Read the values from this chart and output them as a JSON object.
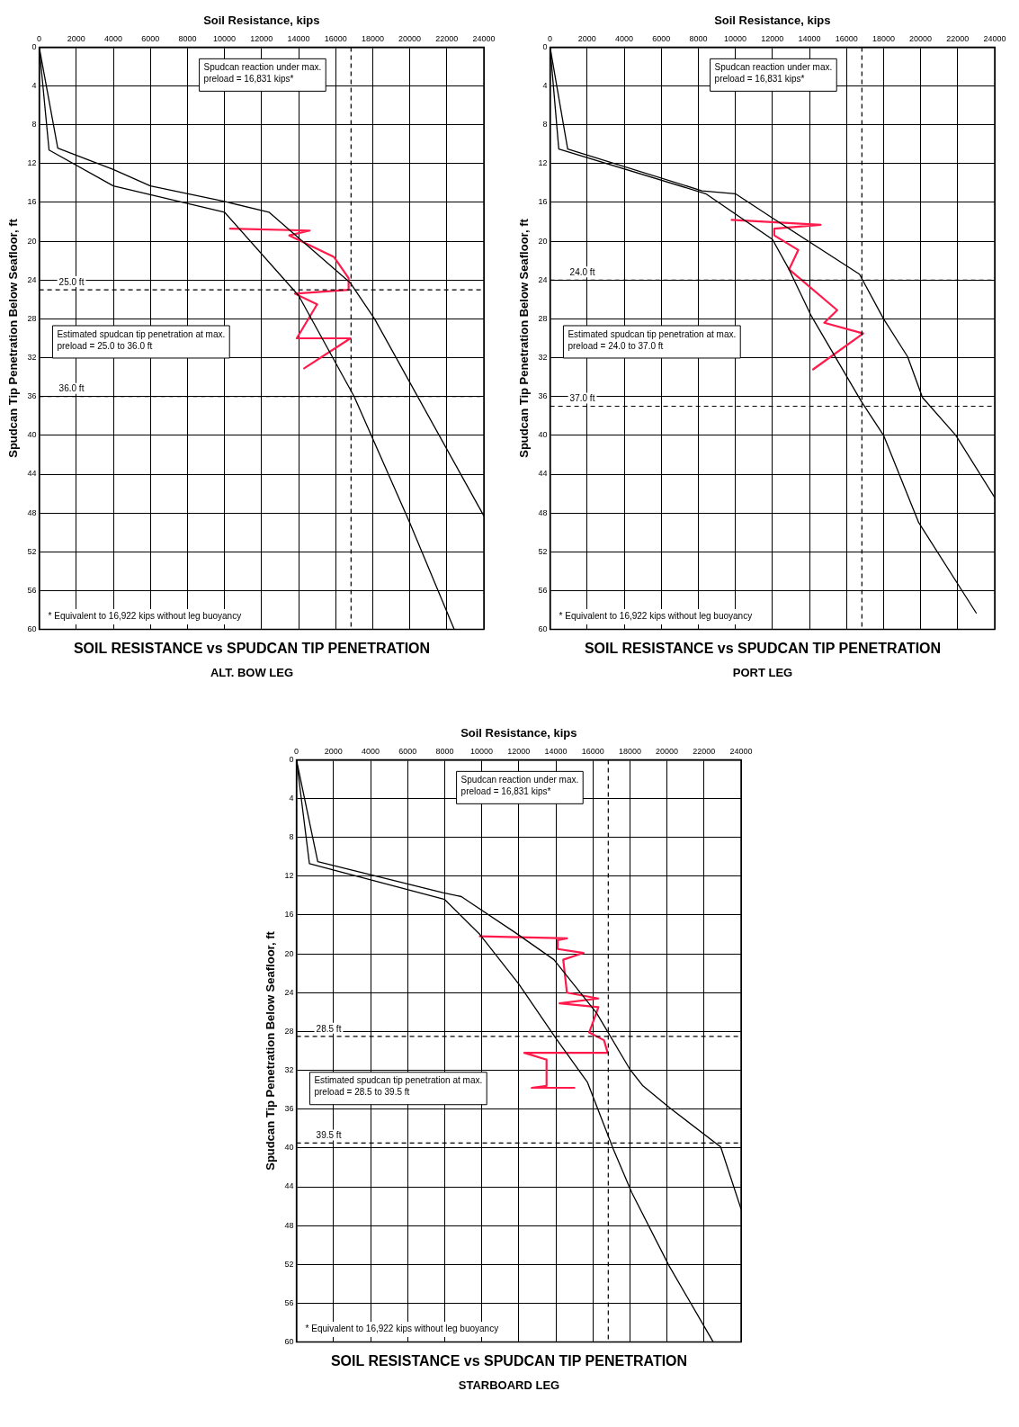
{
  "chart_data": [
    {
      "type": "line",
      "title": "SOIL RESISTANCE vs SPUDCAN TIP PENETRATION",
      "subtitle": "ALT. BOW LEG",
      "xlabel": "Soil Resistance, kips",
      "ylabel": "Spudcan Tip Penetration Below Seafloor, ft",
      "xlim": [
        0,
        24000
      ],
      "xticks": [
        0,
        2000,
        4000,
        6000,
        8000,
        10000,
        12000,
        14000,
        16000,
        18000,
        20000,
        22000,
        24000
      ],
      "ylim": [
        60,
        0
      ],
      "yticks": [
        0,
        4,
        8,
        12,
        16,
        20,
        24,
        28,
        32,
        36,
        40,
        44,
        48,
        52,
        56,
        60
      ],
      "grid": true,
      "series": [
        {
          "color": "#000000",
          "x": [
            0,
            1000,
            4000,
            6000,
            10000,
            12400,
            16800,
            18100,
            24000
          ],
          "values": [
            0,
            10.4,
            12.6,
            14.3,
            15.9,
            17.0,
            24.3,
            28,
            48.3
          ]
        },
        {
          "color": "#000000",
          "x": [
            0,
            530,
            4000,
            10000,
            14000,
            17000,
            20000,
            22400
          ],
          "values": [
            0,
            10.6,
            14.3,
            17.0,
            25.6,
            36,
            49,
            60
          ]
        },
        {
          "color": "#ff1a4b",
          "x": [
            10300,
            14600,
            13500,
            15900,
            16700,
            16700,
            13800,
            15000,
            13900,
            16800,
            14300
          ],
          "values": [
            18.7,
            18.9,
            19.4,
            21.6,
            23.8,
            25,
            25.4,
            26.5,
            30,
            30,
            33.1
          ]
        }
      ],
      "ref_lines": [
        {
          "axis": "x",
          "value": 16831,
          "line_style": "dashed"
        },
        {
          "axis": "y",
          "value": 25,
          "label": "25.0 ft",
          "line_style": "dashed"
        },
        {
          "axis": "y",
          "value": 36,
          "label": "36.0 ft",
          "line_style": "dashed"
        }
      ],
      "annotations": [
        "Spudcan reaction under max. preload = 16,831 kips*",
        "Estimated spudcan tip penetration at max. preload = 25.0 to 36.0 ft",
        "* Equivalent to 16,922 kips without leg buoyancy"
      ]
    },
    {
      "type": "line",
      "title": "SOIL RESISTANCE vs SPUDCAN TIP PENETRATION",
      "subtitle": "PORT LEG",
      "xlabel": "Soil Resistance, kips",
      "ylabel": "Spudcan Tip Penetration Below Seafloor, ft",
      "xlim": [
        0,
        24000
      ],
      "xticks": [
        0,
        2000,
        4000,
        6000,
        8000,
        10000,
        12000,
        14000,
        16000,
        18000,
        20000,
        22000,
        24000
      ],
      "ylim": [
        60,
        0
      ],
      "yticks": [
        0,
        4,
        8,
        12,
        16,
        20,
        24,
        28,
        32,
        36,
        40,
        44,
        48,
        52,
        56,
        60
      ],
      "grid": true,
      "series": [
        {
          "color": "#000000",
          "x": [
            0,
            950,
            8200,
            10000,
            12000,
            16700,
            18000,
            19300,
            20100,
            21900,
            24000
          ],
          "values": [
            0,
            10.5,
            14.8,
            15.1,
            17.6,
            23.4,
            28,
            31.9,
            36.1,
            40,
            46.4
          ]
        },
        {
          "color": "#000000",
          "x": [
            0,
            470,
            8400,
            12000,
            12900,
            14100,
            16800,
            18000,
            19900,
            23000
          ],
          "values": [
            0,
            10.5,
            15.1,
            19.8,
            22.9,
            27.7,
            36.5,
            40,
            49,
            58.3
          ]
        },
        {
          "color": "#ff1a4b",
          "x": [
            9800,
            14600,
            12100,
            12100,
            13400,
            12900,
            15500,
            14800,
            16900,
            14200
          ],
          "values": [
            17.8,
            18.3,
            18.7,
            19.4,
            20.9,
            22.9,
            27.1,
            28.4,
            29.5,
            33.2
          ]
        }
      ],
      "ref_lines": [
        {
          "axis": "x",
          "value": 16831,
          "line_style": "dashed"
        },
        {
          "axis": "y",
          "value": 24,
          "label": "24.0 ft",
          "line_style": "dashed"
        },
        {
          "axis": "y",
          "value": 37,
          "label": "37.0 ft",
          "line_style": "dashed"
        }
      ],
      "annotations": [
        "Spudcan reaction under max. preload = 16,831 kips*",
        "Estimated spudcan tip penetration at max. preload = 24.0 to 37.0 ft",
        "* Equivalent to 16,922 kips without leg buoyancy"
      ]
    },
    {
      "type": "line",
      "title": "SOIL RESISTANCE vs SPUDCAN TIP PENETRATION",
      "subtitle": "STARBOARD LEG",
      "xlabel": "Soil Resistance, kips",
      "ylabel": "Spudcan Tip Penetration Below Seafloor, ft",
      "xlim": [
        0,
        24000
      ],
      "xticks": [
        0,
        2000,
        4000,
        6000,
        8000,
        10000,
        12000,
        14000,
        16000,
        18000,
        20000,
        22000,
        24000
      ],
      "ylim": [
        60,
        0
      ],
      "yticks": [
        0,
        4,
        8,
        12,
        16,
        20,
        24,
        28,
        32,
        36,
        40,
        44,
        48,
        52,
        56,
        60
      ],
      "grid": true,
      "series": [
        {
          "color": "#000000",
          "x": [
            0,
            1150,
            7900,
            8900,
            11800,
            13900,
            16200,
            18000,
            18700,
            20100,
            22900,
            24000
          ],
          "values": [
            0,
            10.5,
            13.7,
            14.1,
            17.8,
            20.6,
            26.1,
            31.9,
            33.6,
            35.8,
            39.9,
            46.3
          ]
        },
        {
          "color": "#000000",
          "x": [
            0,
            700,
            8000,
            9900,
            12000,
            14000,
            15700,
            17100,
            18100,
            20100,
            22500
          ],
          "values": [
            0,
            10.7,
            14.4,
            18,
            23.1,
            28.7,
            33.2,
            40.1,
            44.6,
            52.1,
            60
          ]
        },
        {
          "color": "#ff1a4b",
          "x": [
            9900,
            14600,
            14100,
            14100,
            15500,
            14400,
            14600,
            16300,
            14200,
            16300,
            15800,
            16600,
            16800,
            12300,
            13500,
            13500,
            12700,
            15000
          ],
          "values": [
            18.2,
            18.4,
            18.6,
            19.5,
            19.9,
            20.6,
            24,
            24.6,
            25.1,
            25.5,
            28.1,
            28.9,
            30.2,
            30.2,
            30.9,
            33.6,
            33.8,
            33.8
          ]
        }
      ],
      "ref_lines": [
        {
          "axis": "x",
          "value": 16831,
          "line_style": "dashed"
        },
        {
          "axis": "y",
          "value": 28.5,
          "label": "28.5 ft",
          "line_style": "dashed"
        },
        {
          "axis": "y",
          "value": 39.5,
          "label": "39.5 ft",
          "line_style": "dashed"
        }
      ],
      "annotations": [
        "Spudcan reaction under max. preload = 16,831 kips*",
        "Estimated spudcan tip penetration at max. preload = 28.5 to 39.5 ft",
        "* Equivalent to 16,922 kips without leg buoyancy"
      ]
    }
  ]
}
